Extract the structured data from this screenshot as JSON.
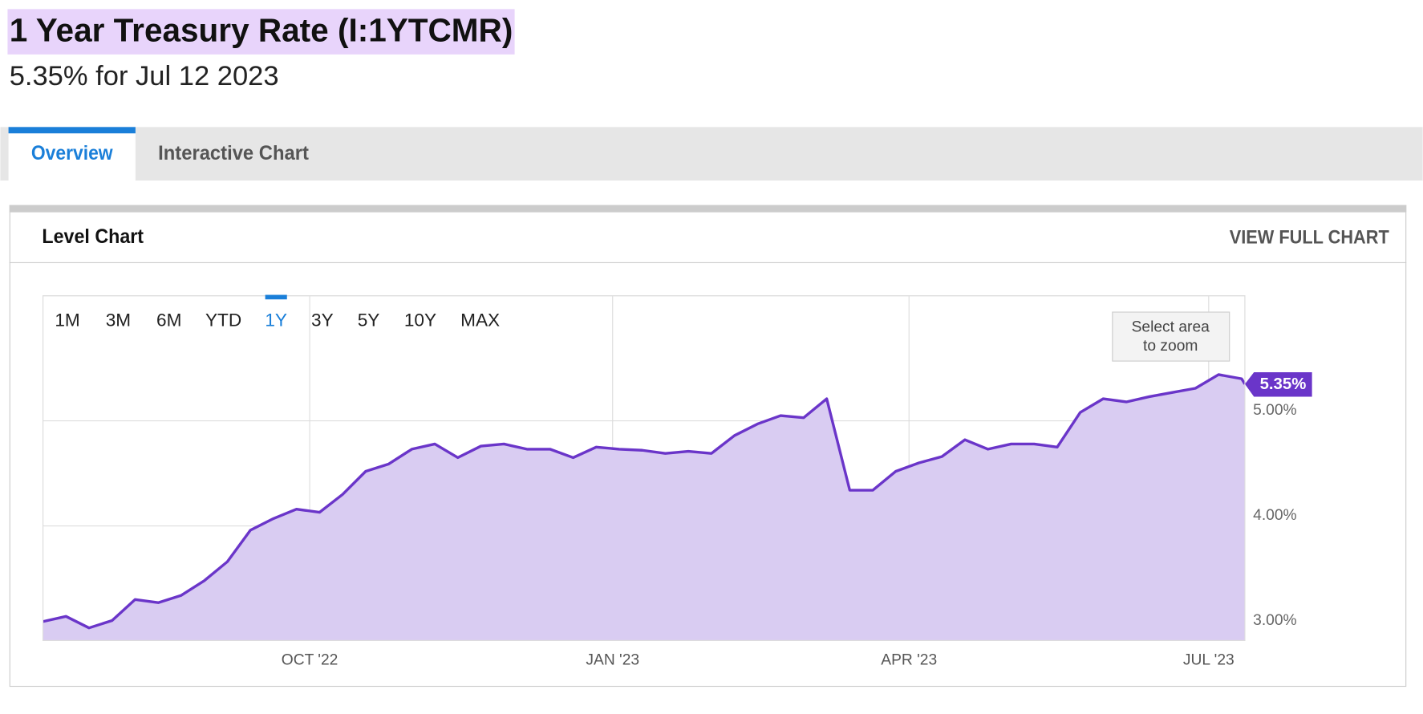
{
  "header": {
    "title": "1 Year Treasury Rate (I:1YTCMR)",
    "subtitle": "5.35% for Jul 12 2023"
  },
  "tabs": [
    "Overview",
    "Interactive Chart"
  ],
  "panel": {
    "title": "Level Chart",
    "link": "VIEW FULL CHART",
    "ranges": [
      "1M",
      "3M",
      "6M",
      "YTD",
      "1Y",
      "3Y",
      "5Y",
      "10Y",
      "MAX"
    ],
    "zoom_hint": [
      "Select area",
      "to zoom"
    ]
  },
  "chart_data": {
    "type": "area",
    "x": [
      "2022-07-12",
      "2022-07-19",
      "2022-07-26",
      "2022-08-02",
      "2022-08-09",
      "2022-08-16",
      "2022-08-23",
      "2022-08-30",
      "2022-09-06",
      "2022-09-13",
      "2022-09-20",
      "2022-09-27",
      "2022-10-04",
      "2022-10-11",
      "2022-10-18",
      "2022-10-25",
      "2022-11-01",
      "2022-11-08",
      "2022-11-15",
      "2022-11-22",
      "2022-11-29",
      "2022-12-06",
      "2022-12-13",
      "2022-12-20",
      "2022-12-27",
      "2023-01-03",
      "2023-01-10",
      "2023-01-17",
      "2023-01-24",
      "2023-01-31",
      "2023-02-07",
      "2023-02-14",
      "2023-02-21",
      "2023-02-28",
      "2023-03-07",
      "2023-03-14",
      "2023-03-21",
      "2023-03-28",
      "2023-04-04",
      "2023-04-11",
      "2023-04-18",
      "2023-04-25",
      "2023-05-02",
      "2023-05-09",
      "2023-05-16",
      "2023-05-23",
      "2023-05-30",
      "2023-06-06",
      "2023-06-13",
      "2023-06-20",
      "2023-06-27",
      "2023-07-04",
      "2023-07-11",
      "2023-07-12"
    ],
    "series": [
      {
        "name": "1 Year Treasury Rate",
        "color": "#6a35c9",
        "fill": "#d9ccf2",
        "values": [
          3.09,
          3.14,
          3.03,
          3.1,
          3.3,
          3.27,
          3.34,
          3.48,
          3.66,
          3.96,
          4.07,
          4.16,
          4.13,
          4.3,
          4.52,
          4.59,
          4.73,
          4.78,
          4.65,
          4.76,
          4.78,
          4.73,
          4.73,
          4.65,
          4.75,
          4.73,
          4.72,
          4.69,
          4.71,
          4.69,
          4.86,
          4.97,
          5.05,
          5.03,
          5.21,
          4.34,
          4.34,
          4.52,
          4.6,
          4.66,
          4.82,
          4.73,
          4.78,
          4.78,
          4.75,
          5.08,
          5.21,
          5.18,
          5.23,
          5.27,
          5.31,
          5.44,
          5.4,
          5.35
        ]
      }
    ],
    "annotation": "5.35%",
    "xlim": [
      "2022-07-12",
      "2023-07-12"
    ],
    "xticks": [
      {
        "value": "2022-10-01",
        "label": "OCT '22"
      },
      {
        "value": "2023-01-01",
        "label": "JAN '23"
      },
      {
        "value": "2023-04-01",
        "label": "APR '23"
      },
      {
        "value": "2023-07-01",
        "label": "JUL '23"
      }
    ],
    "ylim": [
      2.91,
      6.19
    ],
    "yticks": [
      {
        "value": 3,
        "label": "3.00%"
      },
      {
        "value": 4,
        "label": "4.00%"
      },
      {
        "value": 5,
        "label": "5.00%"
      }
    ],
    "grid": true
  }
}
